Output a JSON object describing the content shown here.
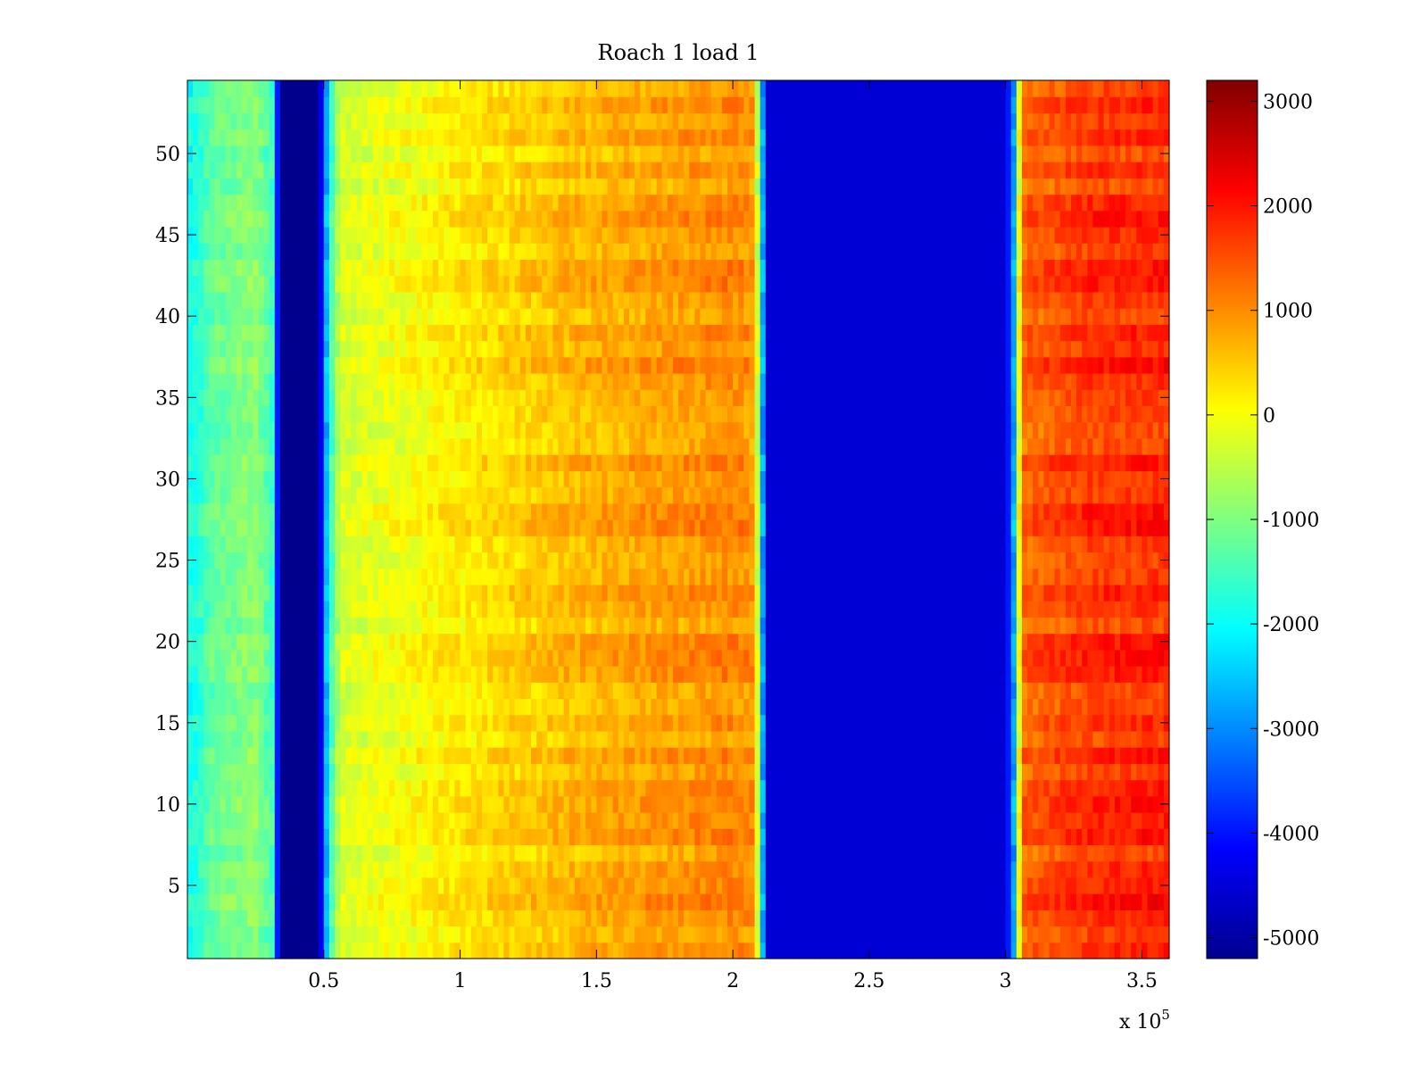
{
  "chart_data": {
    "type": "heatmap",
    "title": "Roach 1 load 1",
    "xlabel": "",
    "ylabel": "",
    "xlim": [
      0,
      360000
    ],
    "ylim": [
      0.5,
      54.5
    ],
    "x_exponent_label": "x 10",
    "x_exponent_power": "5",
    "x_ticks": [
      {
        "value": 50000,
        "label": "0.5"
      },
      {
        "value": 100000,
        "label": "1"
      },
      {
        "value": 150000,
        "label": "1.5"
      },
      {
        "value": 200000,
        "label": "2"
      },
      {
        "value": 250000,
        "label": "2.5"
      },
      {
        "value": 300000,
        "label": "3"
      },
      {
        "value": 350000,
        "label": "3.5"
      }
    ],
    "y_ticks": [
      {
        "value": 5,
        "label": "5"
      },
      {
        "value": 10,
        "label": "10"
      },
      {
        "value": 15,
        "label": "15"
      },
      {
        "value": 20,
        "label": "20"
      },
      {
        "value": 25,
        "label": "25"
      },
      {
        "value": 30,
        "label": "30"
      },
      {
        "value": 35,
        "label": "35"
      },
      {
        "value": 40,
        "label": "40"
      },
      {
        "value": 45,
        "label": "45"
      },
      {
        "value": 50,
        "label": "50"
      }
    ],
    "rows": 54,
    "colormap": "jet",
    "colorbar": {
      "clim": [
        -5200,
        3200
      ],
      "ticks": [
        {
          "value": 3000,
          "label": "3000"
        },
        {
          "value": 2000,
          "label": "2000"
        },
        {
          "value": 1000,
          "label": "1000"
        },
        {
          "value": 0,
          "label": "0"
        },
        {
          "value": -1000,
          "label": "-1000"
        },
        {
          "value": -2000,
          "label": "-2000"
        },
        {
          "value": -3000,
          "label": "-3000"
        },
        {
          "value": -4000,
          "label": "-4000"
        },
        {
          "value": -5000,
          "label": "-5000"
        }
      ]
    },
    "x_profile": [
      {
        "x": 0,
        "value": -2000
      },
      {
        "x": 10000,
        "value": -1200
      },
      {
        "x": 25000,
        "value": -900
      },
      {
        "x": 31000,
        "value": -1500
      },
      {
        "x": 34000,
        "value": -5100
      },
      {
        "x": 48000,
        "value": -5100
      },
      {
        "x": 52000,
        "value": -1800
      },
      {
        "x": 56000,
        "value": -300
      },
      {
        "x": 100000,
        "value": 200
      },
      {
        "x": 150000,
        "value": 700
      },
      {
        "x": 200000,
        "value": 1000
      },
      {
        "x": 208000,
        "value": 900
      },
      {
        "x": 211000,
        "value": -2800
      },
      {
        "x": 213000,
        "value": -4500
      },
      {
        "x": 300000,
        "value": -4500
      },
      {
        "x": 303000,
        "value": -2800
      },
      {
        "x": 306000,
        "value": 1300
      },
      {
        "x": 330000,
        "value": 1700
      },
      {
        "x": 360000,
        "value": 1800
      }
    ]
  }
}
